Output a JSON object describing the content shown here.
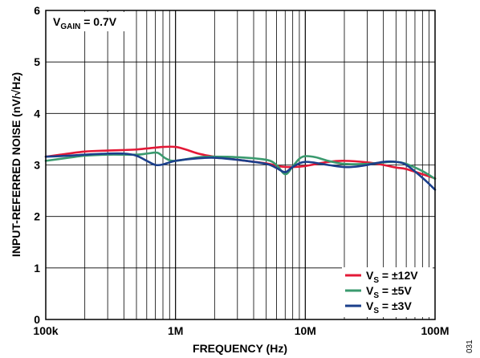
{
  "chart_data": {
    "type": "line",
    "title": "",
    "annotation": {
      "prefix": "V",
      "sub": "GAIN",
      "suffix": " = 0.7V"
    },
    "xlabel": "FREQUENCY (Hz)",
    "ylabel": "INPUT-REFERRED NOISE (nV/√Hz)",
    "x_scale": "log",
    "xlim": [
      100000,
      100000000
    ],
    "ylim": [
      0,
      6
    ],
    "x_ticks": [
      {
        "value": 100000,
        "label": "100k"
      },
      {
        "value": 1000000,
        "label": "1M"
      },
      {
        "value": 10000000,
        "label": "10M"
      },
      {
        "value": 100000000,
        "label": "100M"
      }
    ],
    "y_ticks": [
      {
        "value": 0,
        "label": "0"
      },
      {
        "value": 1,
        "label": "1"
      },
      {
        "value": 2,
        "label": "2"
      },
      {
        "value": 3,
        "label": "3"
      },
      {
        "value": 4,
        "label": "4"
      },
      {
        "value": 5,
        "label": "5"
      },
      {
        "value": 6,
        "label": "6"
      }
    ],
    "grid": true,
    "legend_position": "bottom-right",
    "series": [
      {
        "legend": {
          "prefix": "V",
          "sub": "S",
          "suffix": " = ±12V"
        },
        "color": "#e31937",
        "points": [
          [
            100000,
            3.16
          ],
          [
            130000,
            3.2
          ],
          [
            200000,
            3.26
          ],
          [
            300000,
            3.28
          ],
          [
            400000,
            3.29
          ],
          [
            500000,
            3.3
          ],
          [
            600000,
            3.32
          ],
          [
            800000,
            3.35
          ],
          [
            1000000,
            3.35
          ],
          [
            1200000,
            3.3
          ],
          [
            1500000,
            3.22
          ],
          [
            2000000,
            3.16
          ],
          [
            3000000,
            3.1
          ],
          [
            5000000,
            3.03
          ],
          [
            6500000,
            2.97
          ],
          [
            8000000,
            2.96
          ],
          [
            10000000,
            2.98
          ],
          [
            15000000,
            3.06
          ],
          [
            20000000,
            3.08
          ],
          [
            30000000,
            3.05
          ],
          [
            40000000,
            3.0
          ],
          [
            50000000,
            2.95
          ],
          [
            60000000,
            2.92
          ],
          [
            80000000,
            2.82
          ],
          [
            100000000,
            2.74
          ]
        ]
      },
      {
        "legend": {
          "prefix": "V",
          "sub": "S",
          "suffix": " = ±5V"
        },
        "color": "#3a9a6e",
        "points": [
          [
            100000,
            3.08
          ],
          [
            150000,
            3.14
          ],
          [
            200000,
            3.18
          ],
          [
            300000,
            3.2
          ],
          [
            500000,
            3.2
          ],
          [
            600000,
            3.22
          ],
          [
            700000,
            3.24
          ],
          [
            750000,
            3.22
          ],
          [
            850000,
            3.12
          ],
          [
            1000000,
            3.08
          ],
          [
            1500000,
            3.15
          ],
          [
            2000000,
            3.16
          ],
          [
            3000000,
            3.15
          ],
          [
            5000000,
            3.1
          ],
          [
            6000000,
            3.0
          ],
          [
            7000000,
            2.82
          ],
          [
            8000000,
            2.97
          ],
          [
            9000000,
            3.12
          ],
          [
            10000000,
            3.17
          ],
          [
            12000000,
            3.15
          ],
          [
            15000000,
            3.08
          ],
          [
            20000000,
            3.02
          ],
          [
            30000000,
            3.02
          ],
          [
            40000000,
            3.05
          ],
          [
            50000000,
            3.06
          ],
          [
            60000000,
            3.02
          ],
          [
            80000000,
            2.88
          ],
          [
            100000000,
            2.73
          ]
        ]
      },
      {
        "legend": {
          "prefix": "V",
          "sub": "S",
          "suffix": " = ±3V"
        },
        "color": "#1b3f8b",
        "points": [
          [
            100000,
            3.16
          ],
          [
            150000,
            3.18
          ],
          [
            200000,
            3.2
          ],
          [
            300000,
            3.22
          ],
          [
            400000,
            3.22
          ],
          [
            500000,
            3.18
          ],
          [
            600000,
            3.08
          ],
          [
            700000,
            3.0
          ],
          [
            800000,
            3.01
          ],
          [
            1000000,
            3.08
          ],
          [
            1500000,
            3.13
          ],
          [
            2000000,
            3.14
          ],
          [
            3000000,
            3.1
          ],
          [
            5000000,
            3.02
          ],
          [
            6000000,
            2.94
          ],
          [
            7000000,
            2.86
          ],
          [
            8000000,
            2.96
          ],
          [
            10000000,
            3.06
          ],
          [
            15000000,
            3.0
          ],
          [
            20000000,
            2.96
          ],
          [
            25000000,
            2.97
          ],
          [
            30000000,
            3.0
          ],
          [
            40000000,
            3.06
          ],
          [
            50000000,
            3.06
          ],
          [
            60000000,
            3.0
          ],
          [
            80000000,
            2.75
          ],
          [
            100000000,
            2.52
          ]
        ]
      }
    ]
  },
  "figure_id": "031"
}
